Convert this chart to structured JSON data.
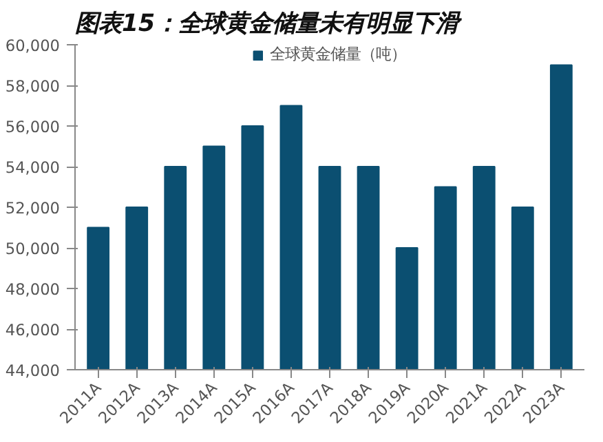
{
  "chart_data": {
    "type": "bar",
    "title": "图表15：全球黄金储量未有明显下滑",
    "categories": [
      "2011A",
      "2012A",
      "2013A",
      "2014A",
      "2015A",
      "2016A",
      "2017A",
      "2018A",
      "2019A",
      "2020A",
      "2021A",
      "2022A",
      "2023A"
    ],
    "series": [
      {
        "name": "全球黄金储量（吨）",
        "color": "#0b4f71",
        "values": [
          51000,
          52000,
          54000,
          55000,
          56000,
          57000,
          54000,
          54000,
          50000,
          53000,
          54000,
          52000,
          59000
        ]
      }
    ],
    "ylim": [
      44000,
      60000
    ],
    "yticks": [
      {
        "value": 44000,
        "label": "44,000"
      },
      {
        "value": 46000,
        "label": "46,000"
      },
      {
        "value": 48000,
        "label": "48,000"
      },
      {
        "value": 50000,
        "label": "50,000"
      },
      {
        "value": 52000,
        "label": "52,000"
      },
      {
        "value": 54000,
        "label": "54,000"
      },
      {
        "value": 56000,
        "label": "56,000"
      },
      {
        "value": 58000,
        "label": "58,000"
      },
      {
        "value": 60000,
        "label": "60,000"
      }
    ],
    "grid": false,
    "legend": "top"
  }
}
